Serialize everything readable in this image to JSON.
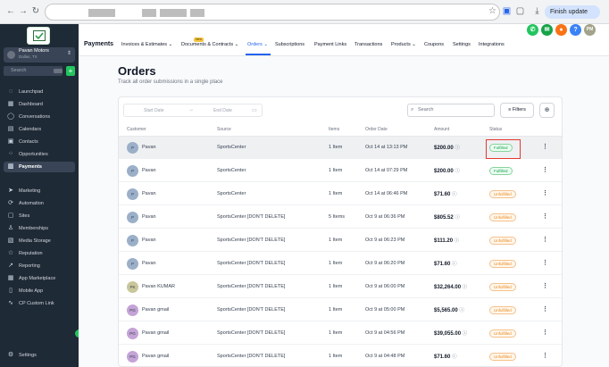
{
  "browser": {
    "finish_update_label": "Finish update"
  },
  "sidebar": {
    "account_name": "Pavan Motors",
    "account_location": "Dallas, TX",
    "search_placeholder": "Search",
    "search_shortcut": "ctrl K",
    "items": [
      {
        "label": "Launchpad",
        "icon": "rocket-icon"
      },
      {
        "label": "Dashboard",
        "icon": "grid-icon"
      },
      {
        "label": "Conversations",
        "icon": "chat-icon"
      },
      {
        "label": "Calendars",
        "icon": "calendar-icon"
      },
      {
        "label": "Contacts",
        "icon": "contacts-icon"
      },
      {
        "label": "Opportunities",
        "icon": "funnel-icon"
      },
      {
        "label": "Payments",
        "icon": "payments-icon"
      },
      {
        "label": "Marketing",
        "icon": "send-icon"
      },
      {
        "label": "Automation",
        "icon": "automation-icon"
      },
      {
        "label": "Sites",
        "icon": "sites-icon"
      },
      {
        "label": "Memberships",
        "icon": "memberships-icon"
      },
      {
        "label": "Media Storage",
        "icon": "image-icon"
      },
      {
        "label": "Reputation",
        "icon": "star-icon"
      },
      {
        "label": "Reporting",
        "icon": "chart-icon"
      },
      {
        "label": "App Marketplace",
        "icon": "apps-icon"
      },
      {
        "label": "Mobile App",
        "icon": "phone-icon"
      },
      {
        "label": "CP Custom Link",
        "icon": "link-icon"
      }
    ],
    "settings_label": "Settings"
  },
  "topnav": {
    "app_title": "Payments",
    "new_badge": "New",
    "tabs": [
      {
        "label": "Invoices & Estimates ⌄"
      },
      {
        "label": "Documents & Contracts ⌄"
      },
      {
        "label": "Orders ⌄"
      },
      {
        "label": "Subscriptions"
      },
      {
        "label": "Payment Links"
      },
      {
        "label": "Transactions"
      },
      {
        "label": "Products ⌄"
      },
      {
        "label": "Coupons"
      },
      {
        "label": "Settings"
      },
      {
        "label": "Integrations"
      }
    ],
    "avatar_initials": "PM"
  },
  "page": {
    "title": "Orders",
    "subtitle": "Track all order submissions in a single place"
  },
  "filters": {
    "start_date_placeholder": "Start Date",
    "end_date_placeholder": "End Date",
    "search_placeholder": "Search",
    "filters_label": "Filters"
  },
  "table": {
    "headers": {
      "customer": "Customer",
      "source": "Source",
      "items": "Items",
      "date": "Order Date",
      "amount": "Amount",
      "status": "Status"
    },
    "rows": [
      {
        "initial": "P",
        "customer": "Pavan",
        "source": "SportsCenter",
        "items": "1 Item",
        "date": "Oct 14 at 13:13 PM",
        "amount": "$200.00",
        "status": "Fulfilled"
      },
      {
        "initial": "P",
        "customer": "Pavan",
        "source": "SportsCenter",
        "items": "1 Item",
        "date": "Oct 14 at 07:29 PM",
        "amount": "$200.00",
        "status": "Fulfilled"
      },
      {
        "initial": "P",
        "customer": "Pavan",
        "source": "SportsCenter",
        "items": "1 Item",
        "date": "Oct 14 at 06:46 PM",
        "amount": "$71.60",
        "status": "Unfulfilled"
      },
      {
        "initial": "P",
        "customer": "Pavan",
        "source": "SportsCenter [DON'T DELETE]",
        "items": "5 Items",
        "date": "Oct 9 at 06:36 PM",
        "amount": "$805.52",
        "status": "Unfulfilled"
      },
      {
        "initial": "P",
        "customer": "Pavan",
        "source": "SportsCenter [DON'T DELETE]",
        "items": "1 Item",
        "date": "Oct 9 at 06:23 PM",
        "amount": "$111.20",
        "status": "Unfulfilled"
      },
      {
        "initial": "P",
        "customer": "Pavan",
        "source": "SportsCenter [DON'T DELETE]",
        "items": "1 Item",
        "date": "Oct 9 at 06:20 PM",
        "amount": "$71.60",
        "status": "Unfulfilled"
      },
      {
        "initial": "PK",
        "customer": "Pavan KUMAR",
        "source": "SportsCenter [DON'T DELETE]",
        "items": "1 Item",
        "date": "Oct 9 at 06:00 PM",
        "amount": "$32,264.00",
        "status": "Unfulfilled"
      },
      {
        "initial": "PG",
        "customer": "Pavan gmail",
        "source": "SportsCenter [DON'T DELETE]",
        "items": "1 Item",
        "date": "Oct 9 at 05:00 PM",
        "amount": "$5,565.00",
        "status": "Unfulfilled"
      },
      {
        "initial": "PG",
        "customer": "Pavan gmail",
        "source": "SportsCenter [DON'T DELETE]",
        "items": "1 Item",
        "date": "Oct 9 at 04:56 PM",
        "amount": "$39,055.00",
        "status": "Unfulfilled"
      },
      {
        "initial": "PG",
        "customer": "Pavan gmail",
        "source": "SportsCenter [DON'T DELETE]",
        "items": "1 Item",
        "date": "Oct 9 at 04:48 PM",
        "amount": "$71.60",
        "status": "Unfulfilled"
      }
    ]
  },
  "colors": {
    "sidebar_bg": "#1f2a37",
    "accent": "#2563eb",
    "fulfilled": "#16a34a",
    "unfulfilled": "#ea8a1c",
    "highlight_box": "#e53935"
  }
}
